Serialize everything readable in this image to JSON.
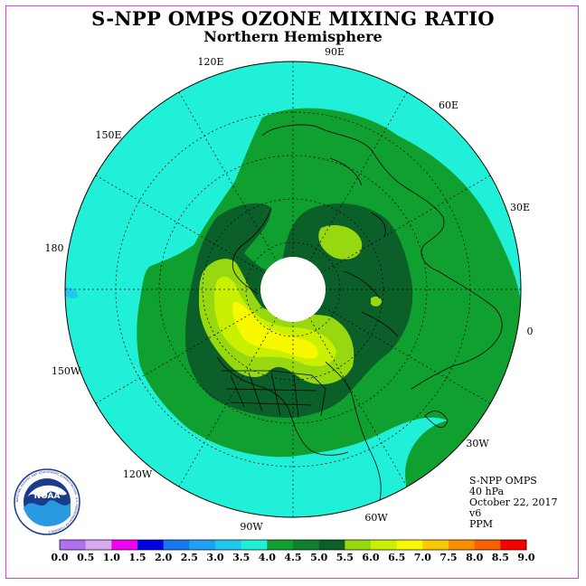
{
  "title": "S-NPP OMPS OZONE MIXING RATIO",
  "subtitle": "Northern Hemisphere",
  "longitude_labels": {
    "lon_90e": "90E",
    "lon_120e": "120E",
    "lon_60e": "60E",
    "lon_150e": "150E",
    "lon_30e": "30E",
    "lon_180": "180",
    "lon_0": "0",
    "lon_150w": "150W",
    "lon_30w": "30W",
    "lon_120w": "120W",
    "lon_60w": "60W",
    "lon_90w": "90W"
  },
  "info": {
    "instrument": "S-NPP OMPS",
    "pressure": "40 hPa",
    "date": "October 22, 2017",
    "version": "v6",
    "units": "PPM"
  },
  "colorbar": {
    "ticks": [
      "0.0",
      "0.5",
      "1.0",
      "1.5",
      "2.0",
      "2.5",
      "3.0",
      "3.5",
      "4.0",
      "4.5",
      "5.0",
      "5.5",
      "6.0",
      "6.5",
      "7.0",
      "7.5",
      "8.0",
      "8.5",
      "9.0"
    ],
    "colors": [
      "#b070f0",
      "#d8a8f0",
      "#f000f0",
      "#0000e0",
      "#1878f0",
      "#20a0f0",
      "#20c8f0",
      "#20f0d8",
      "#10a030",
      "#108030",
      "#0a6028",
      "#98d810",
      "#c8f000",
      "#f8f800",
      "#f8c800",
      "#f89000",
      "#f86000",
      "#f80000",
      "#986040"
    ]
  },
  "logo": {
    "text": "NOAA",
    "ring_text": "NATIONAL OCEANIC AND ATMOSPHERIC ADMINISTRATION · U.S. DEPARTMENT OF COMMERCE"
  }
}
